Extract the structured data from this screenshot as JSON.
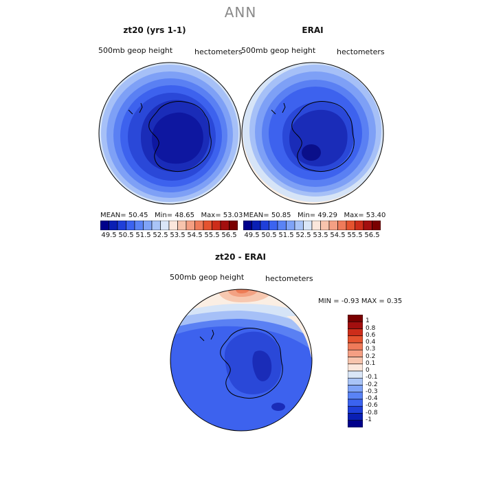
{
  "main_title": "ANN",
  "panels": [
    {
      "title": "zt20 (yrs 1-1)",
      "var_label": "500mb geop height",
      "units": "hectometers",
      "stats": {
        "mean_label": "MEAN=",
        "mean": "50.45",
        "min_label": "Min=",
        "min": "48.65",
        "max_label": "Max=",
        "max": "53.03"
      }
    },
    {
      "title": "ERAI",
      "var_label": "500mb geop height",
      "units": "hectometers",
      "stats": {
        "mean_label": "MEAN=",
        "mean": "50.85",
        "min_label": "Min=",
        "min": "49.29",
        "max_label": "Max=",
        "max": "53.40"
      }
    },
    {
      "title": "zt20 - ERAI",
      "var_label": "500mb geop height",
      "units": "hectometers",
      "stats": {
        "min_label": "MIN =",
        "min": "-0.93",
        "max_label": "MAX =",
        "max": "0.35"
      }
    }
  ],
  "horizontal_colorbar": {
    "colors": [
      "#00008b",
      "#0a1fb4",
      "#1f3fd9",
      "#3b63f0",
      "#5a83f5",
      "#7fa3f7",
      "#a9c4f7",
      "#dae6f7",
      "#fbe7dc",
      "#f7c4ad",
      "#f49f83",
      "#ef7b5a",
      "#e5532f",
      "#cd2d1a",
      "#a30f0f",
      "#7a0000"
    ],
    "tick_labels": [
      "49.5",
      "50.5",
      "51.5",
      "52.5",
      "53.5",
      "54.5",
      "55.5",
      "56.5"
    ]
  },
  "vertical_colorbar": {
    "colors": [
      "#00008b",
      "#0a1fb4",
      "#1f3fd9",
      "#3b63f0",
      "#5a83f5",
      "#7fa3f7",
      "#a9c4f7",
      "#dae6f7",
      "#fbe7dc",
      "#f7c4ad",
      "#f49f83",
      "#ef7b5a",
      "#e5532f",
      "#cd2d1a",
      "#a30f0f",
      "#7a0000"
    ],
    "tick_labels": [
      "1",
      "0.8",
      "0.6",
      "0.4",
      "0.3",
      "0.2",
      "0.1",
      "0",
      "-0.1",
      "-0.2",
      "-0.3",
      "-0.4",
      "-0.6",
      "-0.8",
      "-1"
    ]
  },
  "map_colors": {
    "m1": "#1a2cb8",
    "m2": "#2a48d8",
    "m3": "#3d62ee",
    "m4": "#5a80f3",
    "m5": "#7ea0f6",
    "m6": "#a6c0f7",
    "m7": "#d6e4f7",
    "zero": "#fbeee3",
    "p1": "#f7c8b0",
    "p2": "#f3a283",
    "p3": "#ee7c56",
    "dark": "#0e17a0",
    "darker": "#0a0f8a",
    "coast": "#000000"
  }
}
